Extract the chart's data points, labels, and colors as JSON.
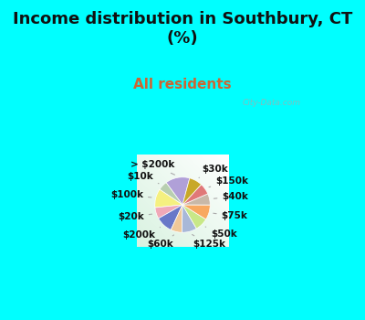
{
  "title": "Income distribution in Southbury, CT\n(%)",
  "subtitle": "All residents",
  "title_color": "#111111",
  "subtitle_color": "#cc6633",
  "bg_cyan": "#00ffff",
  "watermark": "City-Data.com",
  "labels": [
    "> $200k",
    "$10k",
    "$100k",
    "$20k",
    "$200k",
    "$60k",
    "$125k",
    "$50k",
    "$75k",
    "$40k",
    "$150k",
    "$30k"
  ],
  "values": [
    13,
    5,
    10,
    6,
    9,
    6,
    8,
    7,
    8,
    6,
    6,
    7
  ],
  "colors": [
    "#b0a0d8",
    "#b8cfb0",
    "#f5f080",
    "#f0a8b8",
    "#6878c8",
    "#f0c898",
    "#a8b8d8",
    "#c8e888",
    "#f8a860",
    "#c8b8a8",
    "#e07878",
    "#c8a828"
  ],
  "startangle": 75,
  "title_fontsize": 13,
  "subtitle_fontsize": 11,
  "label_fontsize": 7.5
}
